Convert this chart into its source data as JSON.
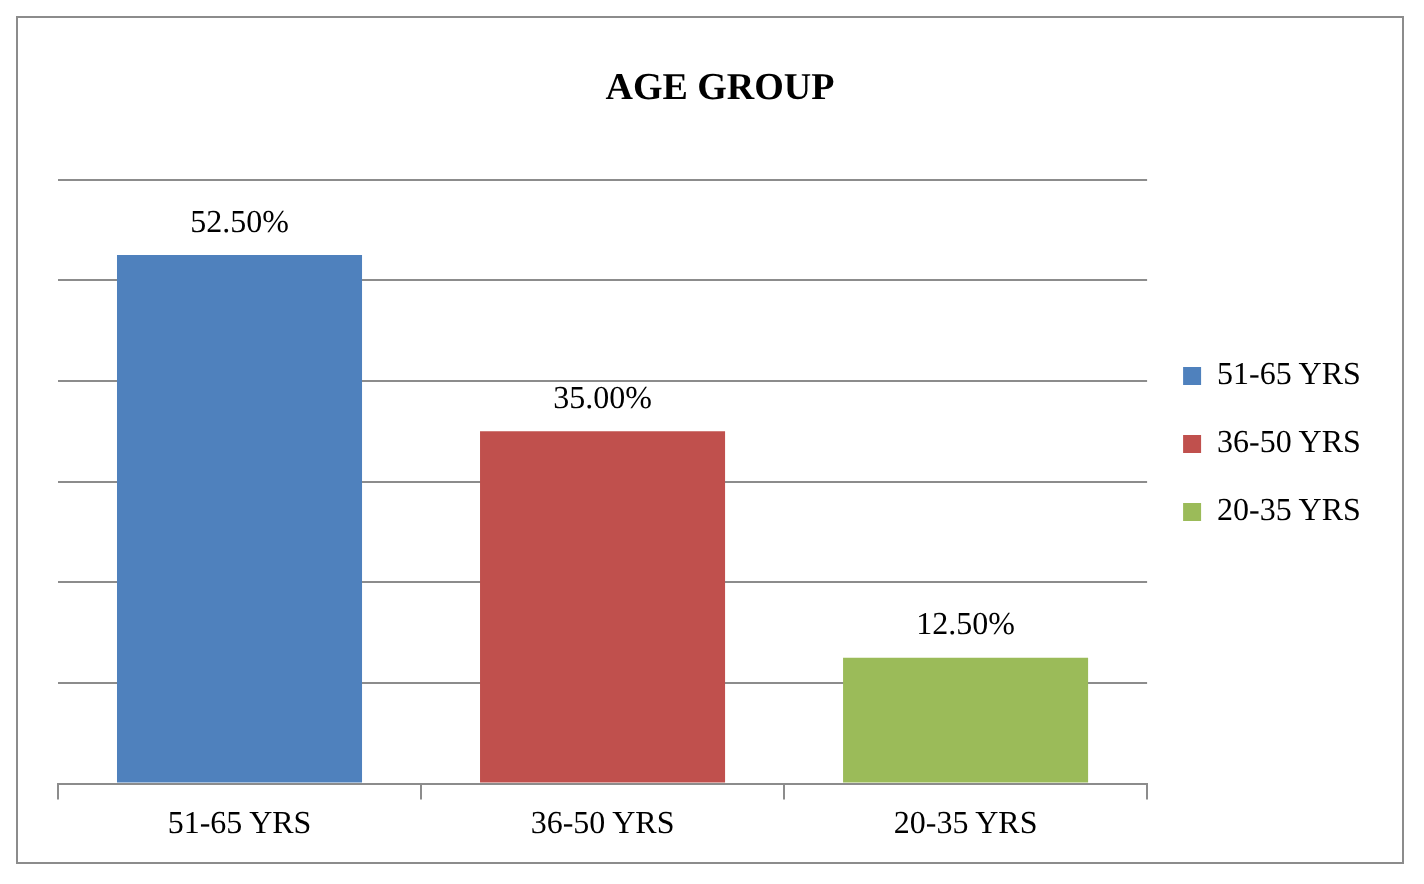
{
  "chart_data": {
    "type": "bar",
    "title": "AGE GROUP",
    "categories": [
      "51-65 YRS",
      "36-50 YRS",
      "20-35 YRS"
    ],
    "series": [
      {
        "name": "51-65 YRS",
        "color": "#4f81bd",
        "values": [
          52.5,
          null,
          null
        ],
        "value_labels": [
          "52.50%",
          null,
          null
        ]
      },
      {
        "name": "36-50 YRS",
        "color": "#c0504d",
        "values": [
          null,
          35,
          null
        ],
        "value_labels": [
          null,
          "35.00%",
          null
        ]
      },
      {
        "name": "20-35 YRS",
        "color": "#9bbb59",
        "values": [
          null,
          null,
          12.5
        ],
        "value_labels": [
          null,
          null,
          "12.50%"
        ]
      }
    ],
    "grid": "y",
    "legend": "right",
    "tick_labels": "x"
  }
}
